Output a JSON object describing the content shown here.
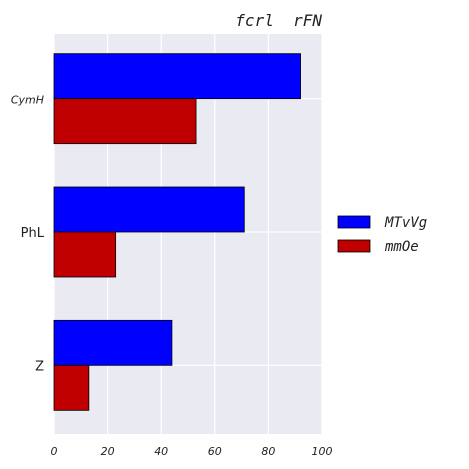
{
  "chart_data": {
    "type": "bar",
    "orientation": "horizontal",
    "title": "fcrl  rFN",
    "categories": [
      "CymH",
      "PhL",
      "Z"
    ],
    "series": [
      {
        "name": "MTvVg",
        "color": "#0000ff",
        "values": [
          92,
          71,
          44
        ]
      },
      {
        "name": "mmOe",
        "color": "#c00000",
        "values": [
          53,
          23,
          13
        ]
      }
    ],
    "xlim": [
      0,
      100
    ],
    "xticks": [
      0,
      20,
      40,
      60,
      80,
      100
    ],
    "grid": true,
    "legend_position": "right"
  }
}
